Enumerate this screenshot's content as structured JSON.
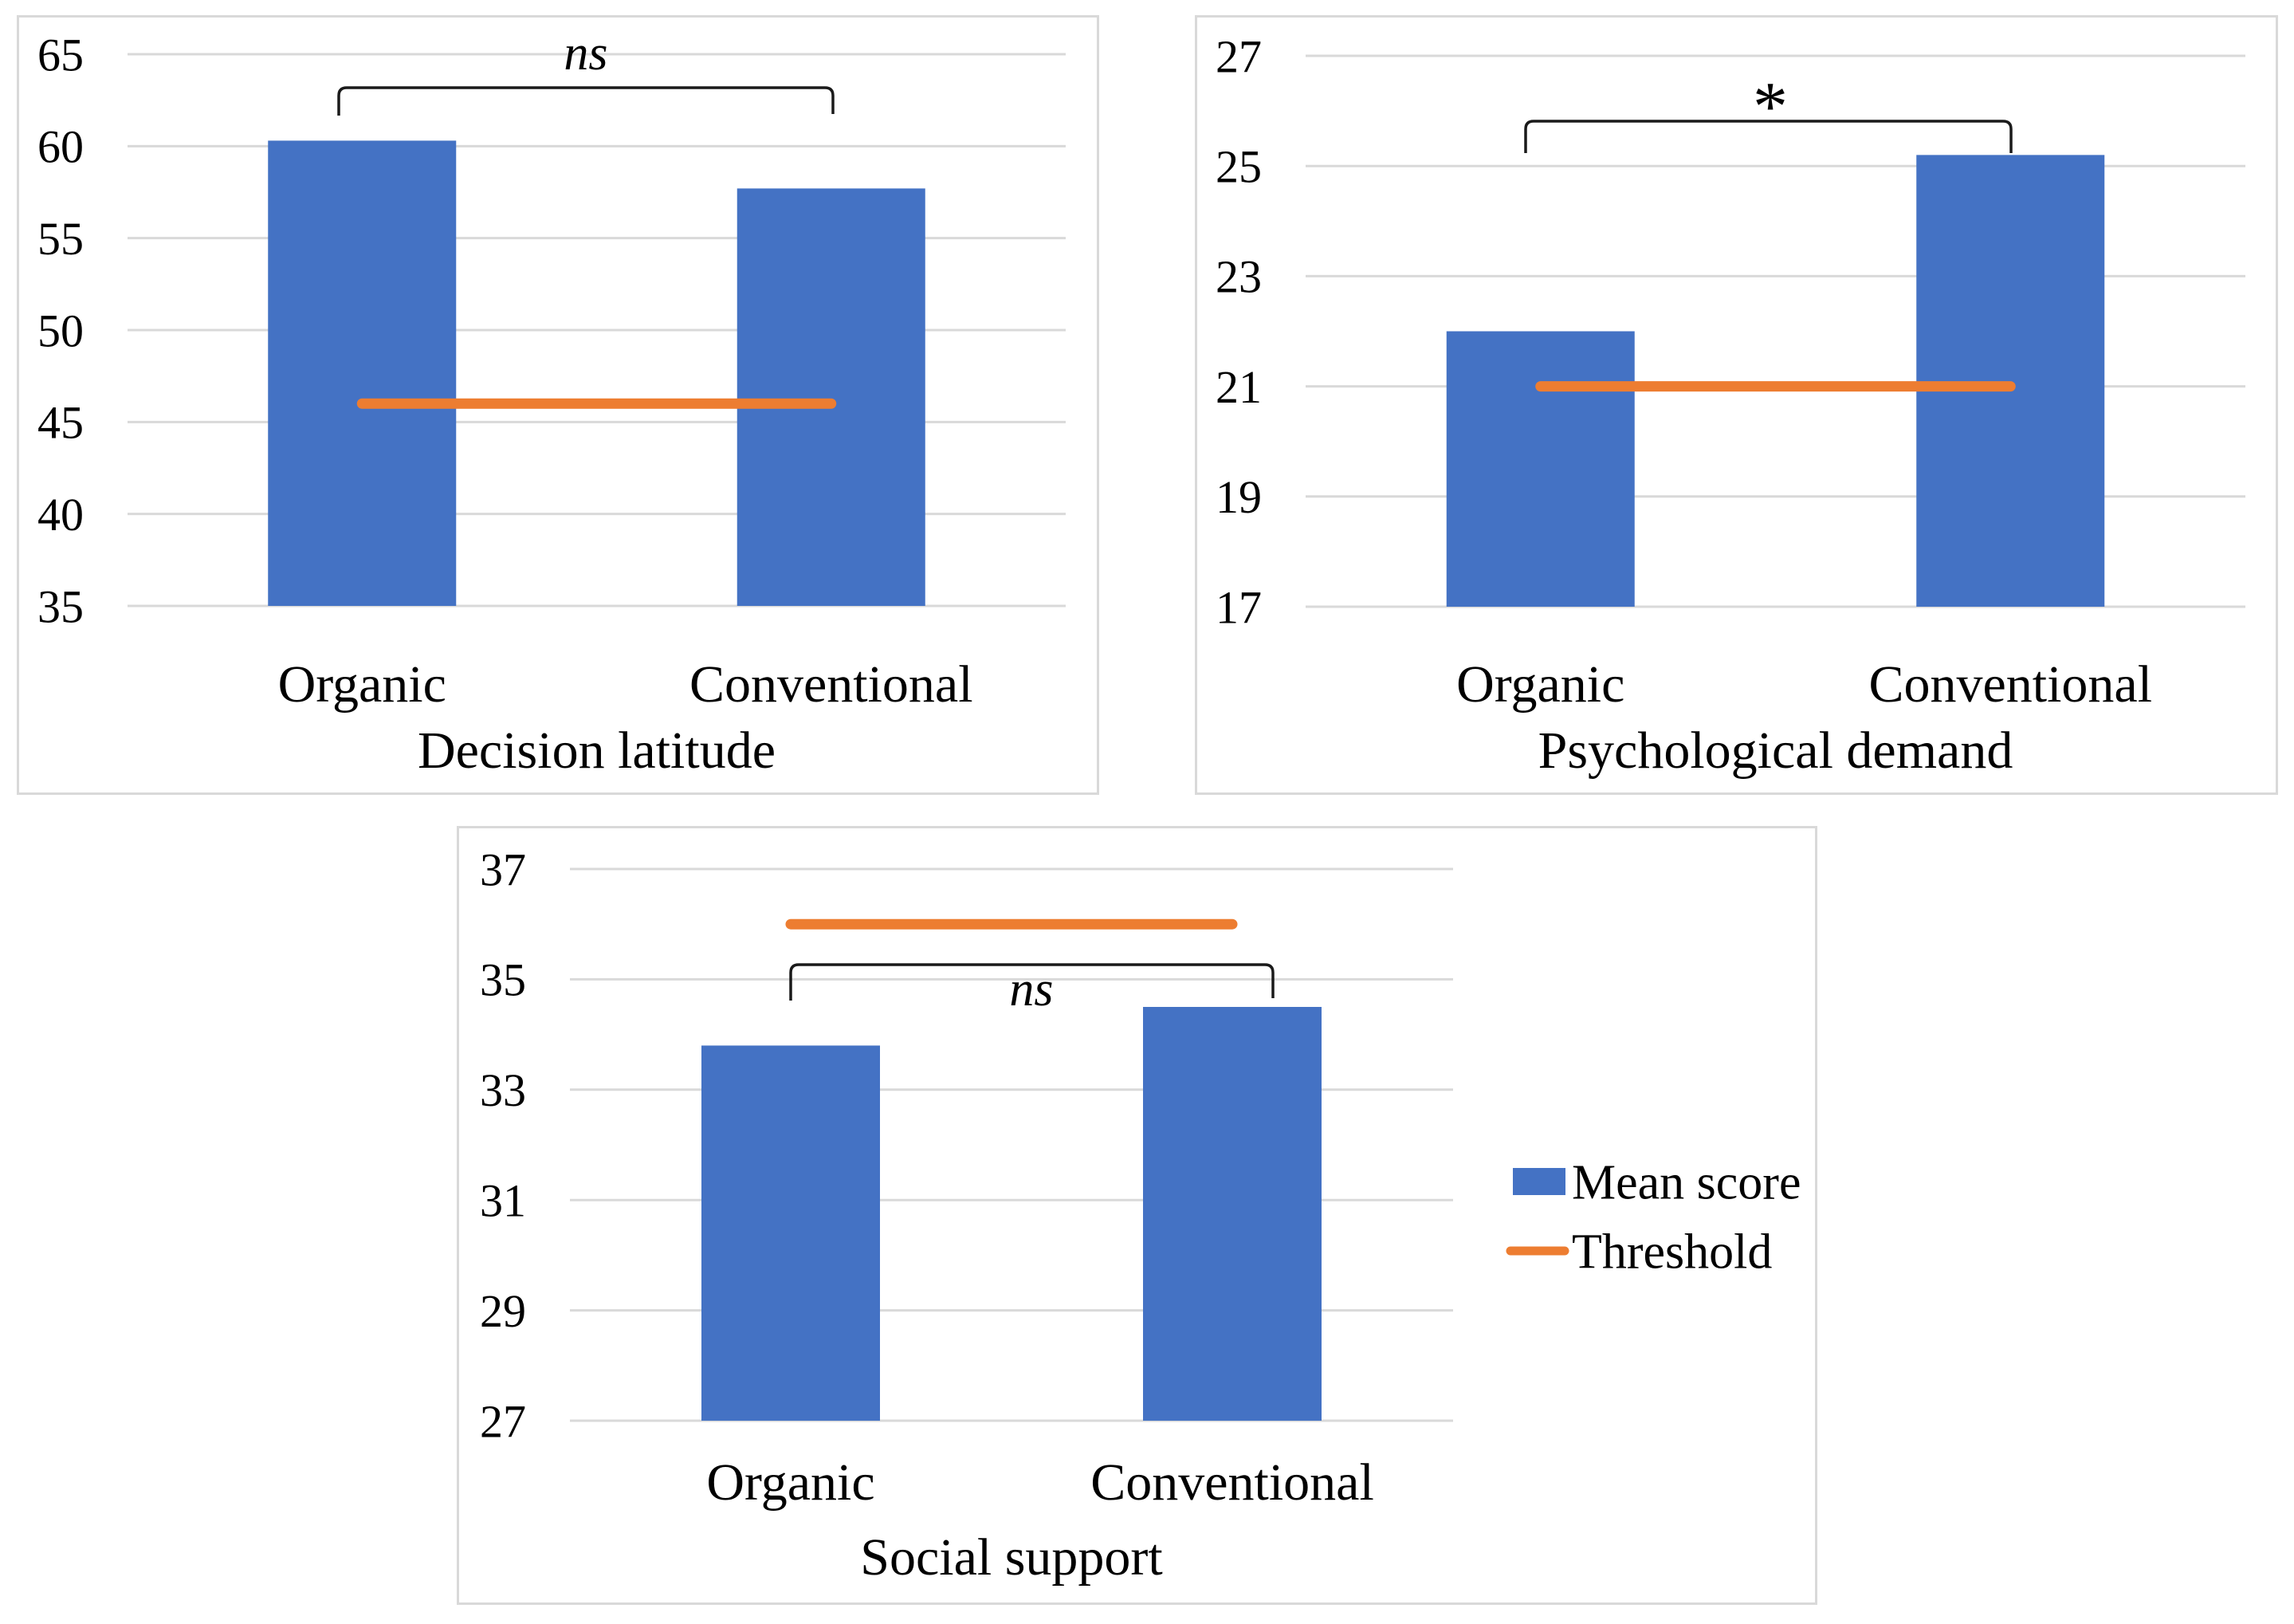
{
  "figure": {
    "description": "Three bar charts comparing Organic vs Conventional farm worker mean scores against thresholds",
    "background": "#ffffff"
  },
  "colors": {
    "bar": "#4472C4",
    "threshold": "#ED7D31",
    "gridline": "#D9D9D9",
    "panel_border": "#D9D9D9",
    "text": "#000000",
    "bracket": "#1a1a1a"
  },
  "legend": {
    "items": [
      {
        "label": "Mean score",
        "type": "bar",
        "color": "#4472C4"
      },
      {
        "label": "Threshold",
        "type": "line",
        "color": "#ED7D31"
      }
    ]
  },
  "chart_data": [
    {
      "type": "bar",
      "title": "Decision latitude",
      "categories": [
        "Organic",
        "Conventional"
      ],
      "series": [
        {
          "name": "Mean score",
          "values": [
            60.3,
            57.7
          ]
        }
      ],
      "threshold": {
        "name": "Threshold",
        "value": 46
      },
      "significance": {
        "label": "ns",
        "style": "italic",
        "position": "above-bracket"
      },
      "ylim": [
        35,
        65
      ],
      "yticks": [
        35,
        40,
        45,
        50,
        55,
        60,
        65
      ],
      "xlabel": "",
      "ylabel": "",
      "grid": true,
      "legend_shown": false
    },
    {
      "type": "bar",
      "title": "Psychological demand",
      "categories": [
        "Organic",
        "Conventional"
      ],
      "series": [
        {
          "name": "Mean score",
          "values": [
            22.0,
            25.2
          ]
        }
      ],
      "threshold": {
        "name": "Threshold",
        "value": 21
      },
      "significance": {
        "label": "*",
        "style": "normal",
        "position": "above-bracket"
      },
      "ylim": [
        17,
        27
      ],
      "yticks": [
        17,
        19,
        21,
        23,
        25,
        27
      ],
      "xlabel": "",
      "ylabel": "",
      "grid": true,
      "legend_shown": false
    },
    {
      "type": "bar",
      "title": "Social support",
      "categories": [
        "Organic",
        "Conventional"
      ],
      "series": [
        {
          "name": "Mean score",
          "values": [
            33.8,
            34.5
          ]
        }
      ],
      "threshold": {
        "name": "Threshold",
        "value": 36
      },
      "significance": {
        "label": "ns",
        "style": "italic",
        "position": "below-bracket"
      },
      "ylim": [
        27,
        37
      ],
      "yticks": [
        27,
        29,
        31,
        33,
        35,
        37
      ],
      "xlabel": "",
      "ylabel": "",
      "grid": true,
      "legend_shown": true,
      "legend_position": "right"
    }
  ]
}
